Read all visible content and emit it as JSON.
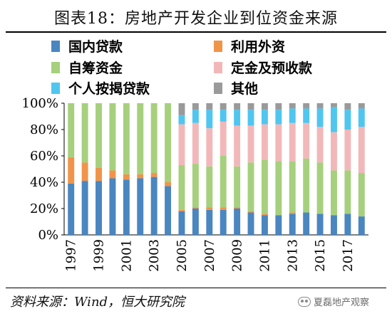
{
  "title": "图表18：房地产开发企业到位资金来源",
  "source": "资料来源：Wind，恒大研究院",
  "watermark": "夏磊地产观察",
  "colors": {
    "domestic_loans": "#4a86c0",
    "foreign_capital": "#f0944a",
    "self_raised": "#a6d07d",
    "deposits_advance": "#f2b8b9",
    "mortgage": "#4fc6f0",
    "other": "#9a9a9a"
  },
  "chart_data": {
    "type": "bar",
    "stacked": true,
    "percent": true,
    "categories": [
      "1997",
      "1998",
      "1999",
      "2000",
      "2001",
      "2002",
      "2003",
      "2004",
      "2005",
      "2006",
      "2007",
      "2008",
      "2009",
      "2010",
      "2011",
      "2012",
      "2013",
      "2014",
      "2015",
      "2016",
      "2017",
      "2018"
    ],
    "x_tick_labels": [
      "1997",
      "1999",
      "2001",
      "2003",
      "2005",
      "2007",
      "2009",
      "2011",
      "2013",
      "2015",
      "2017"
    ],
    "y_ticks": [
      "0%",
      "20%",
      "40%",
      "60%",
      "80%",
      "100%"
    ],
    "ylim": [
      0,
      100
    ],
    "legend": [
      {
        "key": "domestic_loans",
        "label": "国内贷款"
      },
      {
        "key": "foreign_capital",
        "label": "利用外资"
      },
      {
        "key": "self_raised",
        "label": "自筹资金"
      },
      {
        "key": "deposits_advance",
        "label": "定金及预收款"
      },
      {
        "key": "mortgage",
        "label": "个人按揭贷款"
      },
      {
        "key": "other",
        "label": "其他"
      }
    ],
    "series": [
      {
        "key": "domestic_loans",
        "name": "国内贷款",
        "values": [
          39,
          41,
          41,
          43,
          42,
          43,
          44,
          37,
          18,
          20,
          19,
          19,
          20,
          17,
          15,
          15,
          16,
          17,
          16,
          15,
          16,
          14
        ]
      },
      {
        "key": "foreign_capital",
        "name": "利用外资",
        "values": [
          20,
          14,
          10,
          6,
          4,
          3,
          3,
          3,
          1,
          1,
          2,
          2,
          1,
          1,
          1,
          0,
          1,
          0,
          0,
          0,
          0,
          0
        ]
      },
      {
        "key": "self_raised",
        "name": "自筹资金",
        "values": [
          41,
          45,
          49,
          51,
          54,
          54,
          53,
          60,
          34,
          33,
          31,
          39,
          31,
          37,
          41,
          41,
          39,
          41,
          39,
          34,
          33,
          33
        ]
      },
      {
        "key": "deposits_advance",
        "name": "定金及预收款",
        "values": [
          0,
          0,
          0,
          0,
          0,
          0,
          0,
          0,
          31,
          31,
          29,
          26,
          31,
          28,
          27,
          28,
          29,
          27,
          27,
          29,
          31,
          35
        ]
      },
      {
        "key": "mortgage",
        "name": "个人按揭贷款",
        "values": [
          0,
          0,
          0,
          0,
          0,
          0,
          0,
          0,
          7,
          10,
          14,
          9,
          12,
          12,
          11,
          11,
          11,
          11,
          14,
          19,
          15,
          14
        ]
      },
      {
        "key": "other",
        "name": "其他",
        "values": [
          0,
          0,
          0,
          0,
          0,
          0,
          0,
          0,
          9,
          5,
          5,
          5,
          5,
          5,
          5,
          5,
          4,
          4,
          4,
          3,
          5,
          4
        ]
      }
    ]
  }
}
